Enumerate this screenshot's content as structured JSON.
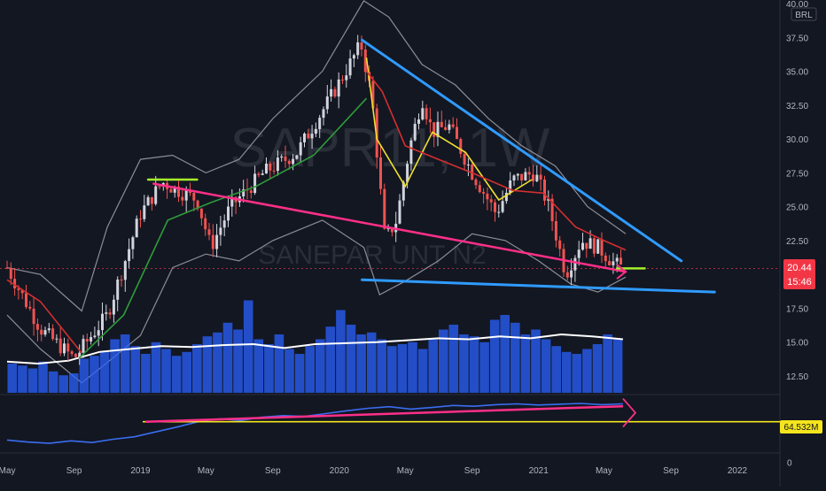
{
  "symbol": {
    "ticker": "SAPR11",
    "interval": "1W",
    "description": "SANEPAR UNT N2",
    "currency": "BRL"
  },
  "colors": {
    "background": "#131722",
    "candle_up": "#d1d4dc",
    "candle_down": "#ef5350",
    "ma_fast": "#f0e030",
    "ma_mid": "#2e9c3a",
    "ma_slow": "#d32f2f",
    "bollinger": "#8a8d96",
    "volume": "#2962ff",
    "volume_ma": "#ffffff",
    "trend_pink": "#ff2f88",
    "trend_blue": "#2f9bff",
    "level_green": "#a6f02b",
    "obv": "#3a6df0",
    "obv_level": "#f4e51d",
    "price_tag": "#f23645"
  },
  "price_tag": {
    "value": "20.44",
    "countdown": "15:46"
  },
  "indicator_tag": {
    "value": "64.532M"
  },
  "chart_data": [
    {
      "type": "candlestick",
      "title": "SAPR11, 1W",
      "subtitle": "SANEPAR UNT N2",
      "x_ticks": [
        "May",
        "Sep",
        "2019",
        "May",
        "Sep",
        "2020",
        "May",
        "Sep",
        "2021",
        "May",
        "Sep",
        "2022"
      ],
      "y_ticks": [
        "40.00",
        "37.50",
        "35.00",
        "32.50",
        "30.00",
        "27.50",
        "25.00",
        "22.50",
        "20.00",
        "17.50",
        "15.00",
        "12.50"
      ],
      "ylim": [
        11.2,
        40.0
      ],
      "last_price": 20.44,
      "price_path": [
        [
          "2018-05-01",
          20.5
        ],
        [
          "2018-07-01",
          16.0
        ],
        [
          "2018-09-01",
          13.8
        ],
        [
          "2018-11-01",
          17.0
        ],
        [
          "2019-01-01",
          24.5
        ],
        [
          "2019-02-10",
          26.8
        ],
        [
          "2019-04-15",
          25.5
        ],
        [
          "2019-05-10",
          22.0
        ],
        [
          "2019-06-15",
          25.0
        ],
        [
          "2019-08-15",
          27.5
        ],
        [
          "2019-10-15",
          29.0
        ],
        [
          "2019-12-15",
          33.0
        ],
        [
          "2020-02-10",
          37.0
        ],
        [
          "2020-03-01",
          33.0
        ],
        [
          "2020-03-25",
          22.5
        ],
        [
          "2020-04-15",
          24.0
        ],
        [
          "2020-05-10",
          29.5
        ],
        [
          "2020-06-01",
          33.0
        ],
        [
          "2020-06-20",
          30.5
        ],
        [
          "2020-07-20",
          31.0
        ],
        [
          "2020-09-01",
          27.5
        ],
        [
          "2020-10-15",
          24.5
        ],
        [
          "2020-11-15",
          27.0
        ],
        [
          "2020-12-25",
          27.5
        ],
        [
          "2021-01-20",
          25.0
        ],
        [
          "2021-02-20",
          20.0
        ],
        [
          "2021-03-20",
          22.5
        ],
        [
          "2021-04-20",
          22.0
        ],
        [
          "2021-05-20",
          20.8
        ],
        [
          "2021-06-05",
          20.44
        ]
      ],
      "moving_averages": [
        {
          "name": "MA fast",
          "points": [
            [
              "2020-02-20",
              36.0
            ],
            [
              "2020-03-10",
              30.0
            ],
            [
              "2020-05-01",
              26.5
            ],
            [
              "2020-06-20",
              30.5
            ],
            [
              "2020-08-20",
              29.0
            ],
            [
              "2020-10-20",
              25.5
            ],
            [
              "2020-12-20",
              27.0
            ]
          ]
        },
        {
          "name": "MA mid",
          "points": [
            [
              "2018-09-10",
              13.8
            ],
            [
              "2018-12-01",
              17.0
            ],
            [
              "2019-02-20",
              24.0
            ],
            [
              "2019-05-10",
              25.3
            ],
            [
              "2019-08-01",
              26.5
            ],
            [
              "2019-11-15",
              28.8
            ],
            [
              "2020-02-20",
              33.0
            ]
          ]
        },
        {
          "name": "MA slow",
          "points": [
            [
              "2018-05-01",
              19.6
            ],
            [
              "2018-07-01",
              18.0
            ],
            [
              "2018-09-15",
              14.2
            ],
            [
              "2020-02-20",
              35.0
            ],
            [
              "2020-03-20",
              33.5
            ],
            [
              "2020-05-01",
              29.5
            ],
            [
              "2020-07-01",
              28.5
            ],
            [
              "2020-09-01",
              27.5
            ],
            [
              "2020-11-15",
              26.2
            ],
            [
              "2021-01-10",
              26.0
            ],
            [
              "2021-03-10",
              23.5
            ],
            [
              "2021-05-01",
              22.5
            ],
            [
              "2021-06-10",
              21.8
            ]
          ]
        }
      ],
      "bollinger_bands": {
        "upper": [
          [
            "2018-05-01",
            20.5
          ],
          [
            "2018-07-01",
            20.0
          ],
          [
            "2018-09-15",
            17.3
          ],
          [
            "2018-11-01",
            23.5
          ],
          [
            "2019-01-01",
            28.5
          ],
          [
            "2019-03-01",
            28.8
          ],
          [
            "2019-05-01",
            27.5
          ],
          [
            "2019-07-01",
            28.5
          ],
          [
            "2019-09-01",
            31.5
          ],
          [
            "2019-12-01",
            35.0
          ],
          [
            "2020-02-15",
            40.2
          ],
          [
            "2020-04-01",
            39.0
          ],
          [
            "2020-06-01",
            35.5
          ],
          [
            "2020-08-01",
            34.0
          ],
          [
            "2020-10-01",
            31.5
          ],
          [
            "2020-12-01",
            29.5
          ],
          [
            "2021-02-01",
            28.0
          ],
          [
            "2021-04-01",
            25.0
          ],
          [
            "2021-06-10",
            23.0
          ]
        ],
        "lower": [
          [
            "2018-05-01",
            17.0
          ],
          [
            "2018-07-01",
            14.5
          ],
          [
            "2018-09-15",
            12.0
          ],
          [
            "2018-11-01",
            13.5
          ],
          [
            "2019-01-01",
            15.5
          ],
          [
            "2019-03-01",
            20.5
          ],
          [
            "2019-05-01",
            21.5
          ],
          [
            "2019-07-01",
            21.0
          ],
          [
            "2019-09-01",
            22.5
          ],
          [
            "2019-12-01",
            24.0
          ],
          [
            "2020-02-15",
            22.0
          ],
          [
            "2020-03-15",
            18.5
          ],
          [
            "2020-05-01",
            19.5
          ],
          [
            "2020-07-01",
            21.0
          ],
          [
            "2020-09-01",
            23.0
          ],
          [
            "2020-11-01",
            22.5
          ],
          [
            "2021-01-01",
            21.0
          ],
          [
            "2021-03-01",
            19.3
          ],
          [
            "2021-04-20",
            18.7
          ],
          [
            "2021-06-10",
            19.8
          ]
        ]
      },
      "trendlines": [
        {
          "name": "upper falling line",
          "color": "blue",
          "from": [
            "2020-02-12",
            37.3
          ],
          "to": [
            "2021-09-20",
            21.0
          ]
        },
        {
          "name": "lower support line",
          "color": "blue",
          "from": [
            "2020-02-12",
            19.6
          ],
          "to": [
            "2021-11-20",
            18.7
          ]
        },
        {
          "name": "descending line",
          "color": "pink",
          "from": [
            "2019-01-25",
            26.7
          ],
          "to": [
            "2021-06-10",
            20.2
          ]
        },
        {
          "name": "breakout level",
          "color": "green",
          "from": [
            "2019-01-15",
            27.0
          ],
          "to": [
            "2019-04-15",
            27.0
          ]
        },
        {
          "name": "current level",
          "color": "green",
          "from": [
            "2021-05-25",
            20.44
          ],
          "to": [
            "2021-07-15",
            20.44
          ]
        }
      ]
    },
    {
      "type": "bar",
      "name": "Volume",
      "note": "relative volume with moving average",
      "values": [
        0.3,
        0.28,
        0.25,
        0.32,
        0.22,
        0.18,
        0.2,
        0.35,
        0.38,
        0.42,
        0.55,
        0.6,
        0.48,
        0.4,
        0.52,
        0.45,
        0.38,
        0.42,
        0.5,
        0.58,
        0.62,
        0.72,
        0.65,
        0.95,
        0.55,
        0.5,
        0.6,
        0.45,
        0.4,
        0.48,
        0.55,
        0.68,
        0.85,
        0.7,
        0.6,
        0.62,
        0.55,
        0.48,
        0.5,
        0.52,
        0.45,
        0.55,
        0.65,
        0.7,
        0.6,
        0.58,
        0.52,
        0.75,
        0.8,
        0.72,
        0.6,
        0.65,
        0.55,
        0.48,
        0.42,
        0.4,
        0.45,
        0.5,
        0.6,
        0.55
      ],
      "ma": [
        0.32,
        0.3,
        0.33,
        0.42,
        0.45,
        0.48,
        0.47,
        0.49,
        0.5,
        0.46,
        0.5,
        0.51,
        0.52,
        0.54,
        0.56,
        0.55,
        0.58,
        0.56,
        0.6,
        0.58,
        0.55
      ]
    },
    {
      "type": "line",
      "name": "OBV",
      "last_value": "64.532M",
      "y_ticks": [
        "0"
      ],
      "values": [
        0.1,
        0.05,
        0.02,
        0.08,
        0.04,
        0.12,
        0.18,
        0.3,
        0.42,
        0.55,
        0.62,
        0.58,
        0.66,
        0.7,
        0.68,
        0.75,
        0.82,
        0.88,
        0.92,
        0.86,
        0.9,
        0.95,
        0.93,
        0.97,
        0.99,
        0.96,
        0.98,
        1.0,
        0.97,
        0.99
      ],
      "annotation_pink": {
        "from": [
          "2019-01-10",
          0.55
        ],
        "to": [
          "2021-06-05",
          0.93
        ]
      },
      "yellow_level": 0.55
    }
  ]
}
